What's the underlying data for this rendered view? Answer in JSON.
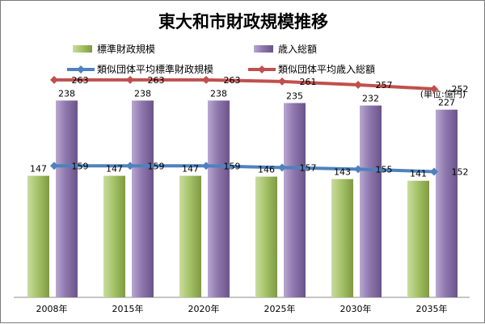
{
  "chart_data": {
    "type": "bar",
    "title": "東大和市財政規模推移",
    "unit": "(単位:億円)",
    "categories": [
      "2008年",
      "2015年",
      "2020年",
      "2025年",
      "2030年",
      "2035年"
    ],
    "ylim": [
      0,
      300
    ],
    "grid": false,
    "legend_position": "top",
    "series": [
      {
        "name": "標準財政規模",
        "kind": "bar",
        "color": "#9bbb59",
        "values": [
          147,
          147,
          147,
          146,
          143,
          141
        ]
      },
      {
        "name": "歳入総額",
        "kind": "bar",
        "color": "#8064a2",
        "values": [
          238,
          238,
          238,
          235,
          232,
          227
        ]
      },
      {
        "name": "類似団体平均標準財政規模",
        "kind": "line",
        "color": "#4f81bd",
        "values": [
          159,
          159,
          159,
          157,
          155,
          152
        ]
      },
      {
        "name": "類似団体平均歳入総額",
        "kind": "line",
        "color": "#c0504d",
        "values": [
          263,
          263,
          263,
          261,
          257,
          252
        ]
      }
    ]
  }
}
